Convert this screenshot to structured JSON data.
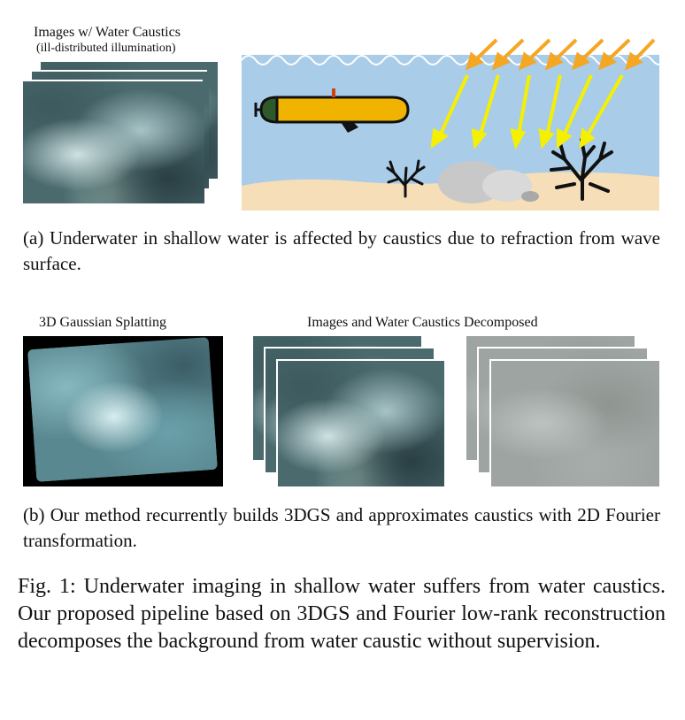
{
  "panel_a": {
    "title": "Images w/ Water Caustics",
    "subtitle": "(ill-distributed illumination)",
    "caption": "(a) Underwater in shallow water is affected by caustics due to refraction from wave surface."
  },
  "panel_b": {
    "left_title": "3D Gaussian Splatting",
    "right_title": "Images and Water Caustics Decomposed",
    "caption": "(b) Our method recurrently builds 3DGS and approximates caustics with 2D Fourier transformation."
  },
  "figure_caption": "Fig. 1: Underwater imaging in shallow water suffers from water caustics. Our proposed pipeline based on 3DGS and Fourier low-rank reconstruction decomposes the background from water caustic without supervision.",
  "colors": {
    "water": "#a9cce9",
    "sand": "#f5deb8",
    "auv_body": "#f0b400",
    "auv_nose": "#2e5a2a",
    "ray_yellow": "#f5f000",
    "ray_orange": "#f5a623",
    "rock": "#cccccc",
    "coral": "#111111"
  }
}
